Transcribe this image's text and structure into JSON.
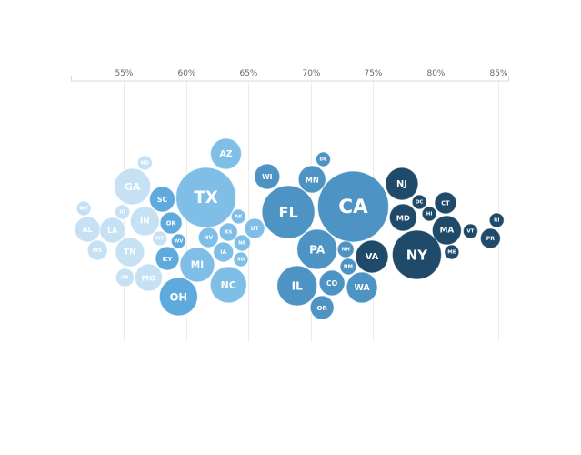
{
  "chart_data": {
    "type": "scatter",
    "subtype": "beeswarm-bubble",
    "title": "",
    "xlabel": "",
    "xlim": [
      50.8,
      85.9
    ],
    "ticks": [
      55,
      60,
      65,
      70,
      75,
      80,
      85
    ],
    "tick_labels": [
      "55%",
      "60%",
      "65%",
      "70%",
      "75%",
      "80%",
      "85%"
    ],
    "grid": true,
    "colors": [
      "#c6e0f4",
      "#7fbfe7",
      "#5eaadd",
      "#4d94c4",
      "#1f4a69"
    ],
    "points": [
      {
        "label": "ND",
        "value": 56.7,
        "size": 64,
        "group": 0
      },
      {
        "label": "GA",
        "value": 55.7,
        "size": 400,
        "group": 0
      },
      {
        "label": "WY",
        "value": 51.8,
        "size": 64,
        "group": 0
      },
      {
        "label": "ID",
        "value": 54.9,
        "size": 64,
        "group": 0
      },
      {
        "label": "IN",
        "value": 56.7,
        "size": 256,
        "group": 0
      },
      {
        "label": "AL",
        "value": 52.1,
        "size": 196,
        "group": 0
      },
      {
        "label": "LA",
        "value": 54.1,
        "size": 196,
        "group": 0
      },
      {
        "label": "MT",
        "value": 57.9,
        "size": 64,
        "group": 0
      },
      {
        "label": "MS",
        "value": 52.9,
        "size": 121,
        "group": 0
      },
      {
        "label": "TN",
        "value": 55.5,
        "size": 256,
        "group": 0
      },
      {
        "label": "AR",
        "value": 55.1,
        "size": 100,
        "group": 0
      },
      {
        "label": "MO",
        "value": 57.0,
        "size": 225,
        "group": 0
      },
      {
        "label": "TX",
        "value": 61.6,
        "size": 1089,
        "group": 1
      },
      {
        "label": "AZ",
        "value": 63.2,
        "size": 289,
        "group": 1
      },
      {
        "label": "AK",
        "value": 64.2,
        "size": 64,
        "group": 1
      },
      {
        "label": "UT",
        "value": 65.5,
        "size": 121,
        "group": 1
      },
      {
        "label": "NV",
        "value": 61.8,
        "size": 121,
        "group": 1
      },
      {
        "label": "KS",
        "value": 63.4,
        "size": 100,
        "group": 1
      },
      {
        "label": "NE",
        "value": 64.5,
        "size": 81,
        "group": 1
      },
      {
        "label": "IA",
        "value": 63.0,
        "size": 121,
        "group": 1
      },
      {
        "label": "MI",
        "value": 60.9,
        "size": 361,
        "group": 1
      },
      {
        "label": "SD",
        "value": 64.4,
        "size": 64,
        "group": 1
      },
      {
        "label": "NC",
        "value": 63.4,
        "size": 400,
        "group": 1
      },
      {
        "label": "SC",
        "value": 58.1,
        "size": 196,
        "group": 2
      },
      {
        "label": "OK",
        "value": 58.8,
        "size": 144,
        "group": 2
      },
      {
        "label": "WV",
        "value": 59.4,
        "size": 64,
        "group": 2
      },
      {
        "label": "KY",
        "value": 58.5,
        "size": 169,
        "group": 2
      },
      {
        "label": "OH",
        "value": 59.4,
        "size": 441,
        "group": 2
      },
      {
        "label": "DE",
        "value": 71.0,
        "size": 64,
        "group": 3
      },
      {
        "label": "WI",
        "value": 66.5,
        "size": 196,
        "group": 3
      },
      {
        "label": "MN",
        "value": 70.1,
        "size": 225,
        "group": 3
      },
      {
        "label": "CA",
        "value": 73.4,
        "size": 1521,
        "group": 3
      },
      {
        "label": "FL",
        "value": 68.2,
        "size": 841,
        "group": 3
      },
      {
        "label": "PA",
        "value": 70.5,
        "size": 484,
        "group": 3
      },
      {
        "label": "NH",
        "value": 72.8,
        "size": 81,
        "group": 3
      },
      {
        "label": "NM",
        "value": 73.0,
        "size": 81,
        "group": 3
      },
      {
        "label": "IL",
        "value": 68.9,
        "size": 484,
        "group": 3
      },
      {
        "label": "CO",
        "value": 71.7,
        "size": 196,
        "group": 3
      },
      {
        "label": "WA",
        "value": 74.1,
        "size": 289,
        "group": 3
      },
      {
        "label": "OR",
        "value": 70.9,
        "size": 169,
        "group": 3
      },
      {
        "label": "NJ",
        "value": 77.3,
        "size": 324,
        "group": 4
      },
      {
        "label": "DC",
        "value": 78.7,
        "size": 64,
        "group": 4
      },
      {
        "label": "CT",
        "value": 80.8,
        "size": 144,
        "group": 4
      },
      {
        "label": "HI",
        "value": 79.5,
        "size": 64,
        "group": 4
      },
      {
        "label": "MD",
        "value": 77.4,
        "size": 225,
        "group": 4
      },
      {
        "label": "RI",
        "value": 84.9,
        "size": 64,
        "group": 4
      },
      {
        "label": "MA",
        "value": 80.9,
        "size": 256,
        "group": 4
      },
      {
        "label": "VT",
        "value": 82.8,
        "size": 64,
        "group": 4
      },
      {
        "label": "PR",
        "value": 84.4,
        "size": 121,
        "group": 4
      },
      {
        "label": "VA",
        "value": 74.9,
        "size": 324,
        "group": 4
      },
      {
        "label": "NY",
        "value": 78.5,
        "size": 729,
        "group": 4
      },
      {
        "label": "ME",
        "value": 81.3,
        "size": 64,
        "group": 4
      }
    ]
  }
}
